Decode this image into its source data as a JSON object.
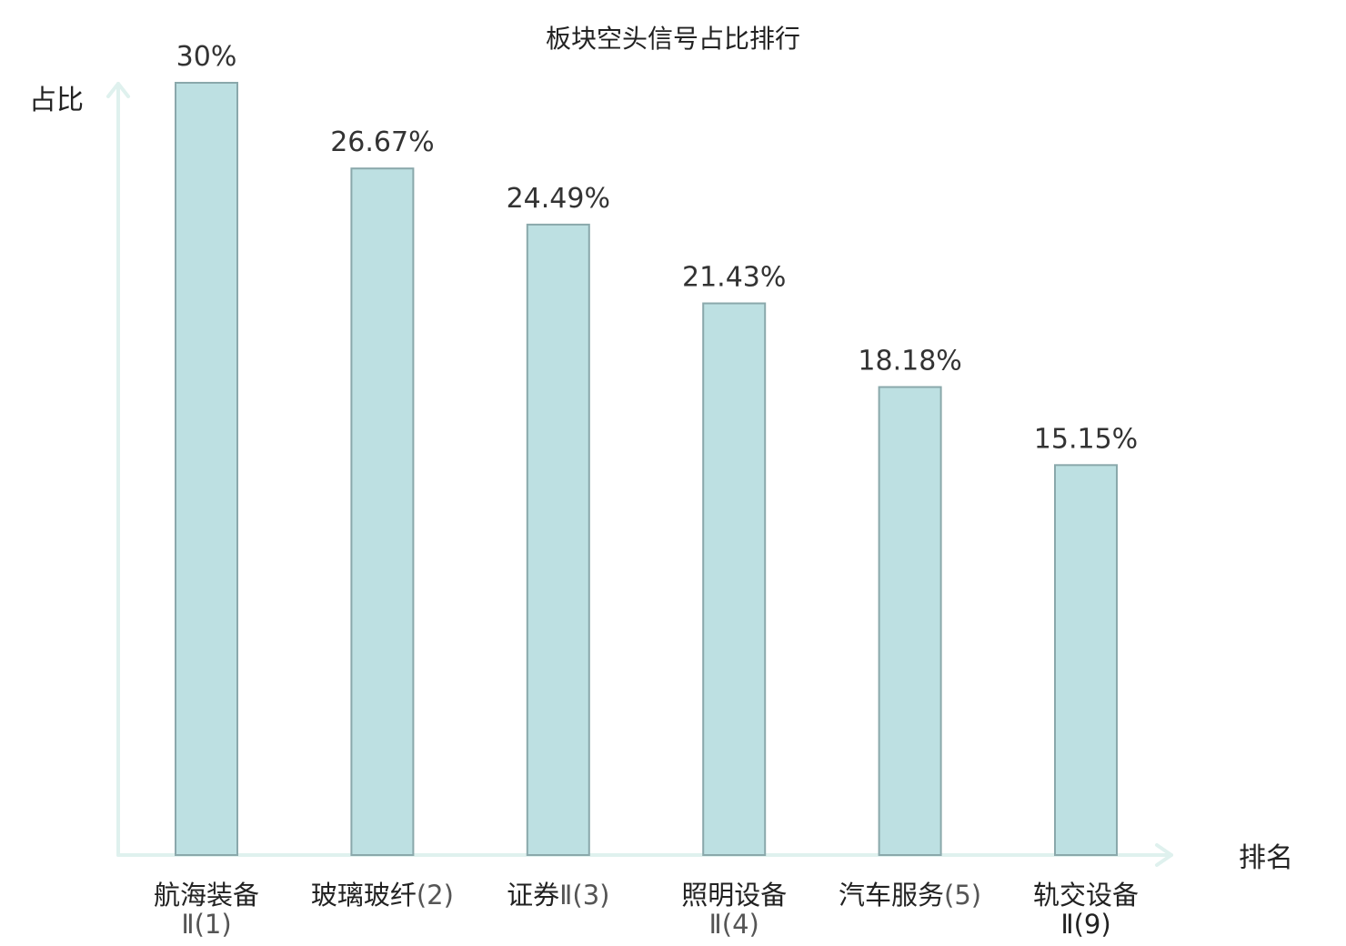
{
  "chart_data": {
    "type": "bar",
    "title": "板块空头信号占比排行",
    "ylabel": "占比",
    "xlabel": "排名",
    "categories": [
      {
        "name": "航海装备",
        "rank": "Ⅱ(1)",
        "highlight": false
      },
      {
        "name": "玻璃玻纤",
        "rank": "(2)",
        "highlight": false
      },
      {
        "name": "证券",
        "rank": "Ⅱ(3)",
        "highlight": false
      },
      {
        "name": "照明设备",
        "rank": "Ⅱ(4)",
        "highlight": false
      },
      {
        "name": "汽车服务",
        "rank": "(5)",
        "highlight": false
      },
      {
        "name": "轨交设备",
        "rank": "Ⅱ(9)",
        "highlight": true
      }
    ],
    "values": [
      30,
      26.67,
      24.49,
      21.43,
      18.18,
      15.15
    ],
    "value_labels": [
      "30%",
      "26.67%",
      "24.49%",
      "21.43%",
      "18.18%",
      "15.15%"
    ],
    "ylim": [
      0,
      30
    ],
    "grid": false,
    "legend": "none",
    "colors": {
      "bar_fill": "#bde0e2",
      "bar_stroke": "#8aa8ab",
      "axis": "#dff1ee",
      "highlight_text": "#e8201e",
      "text": "#222222"
    }
  }
}
